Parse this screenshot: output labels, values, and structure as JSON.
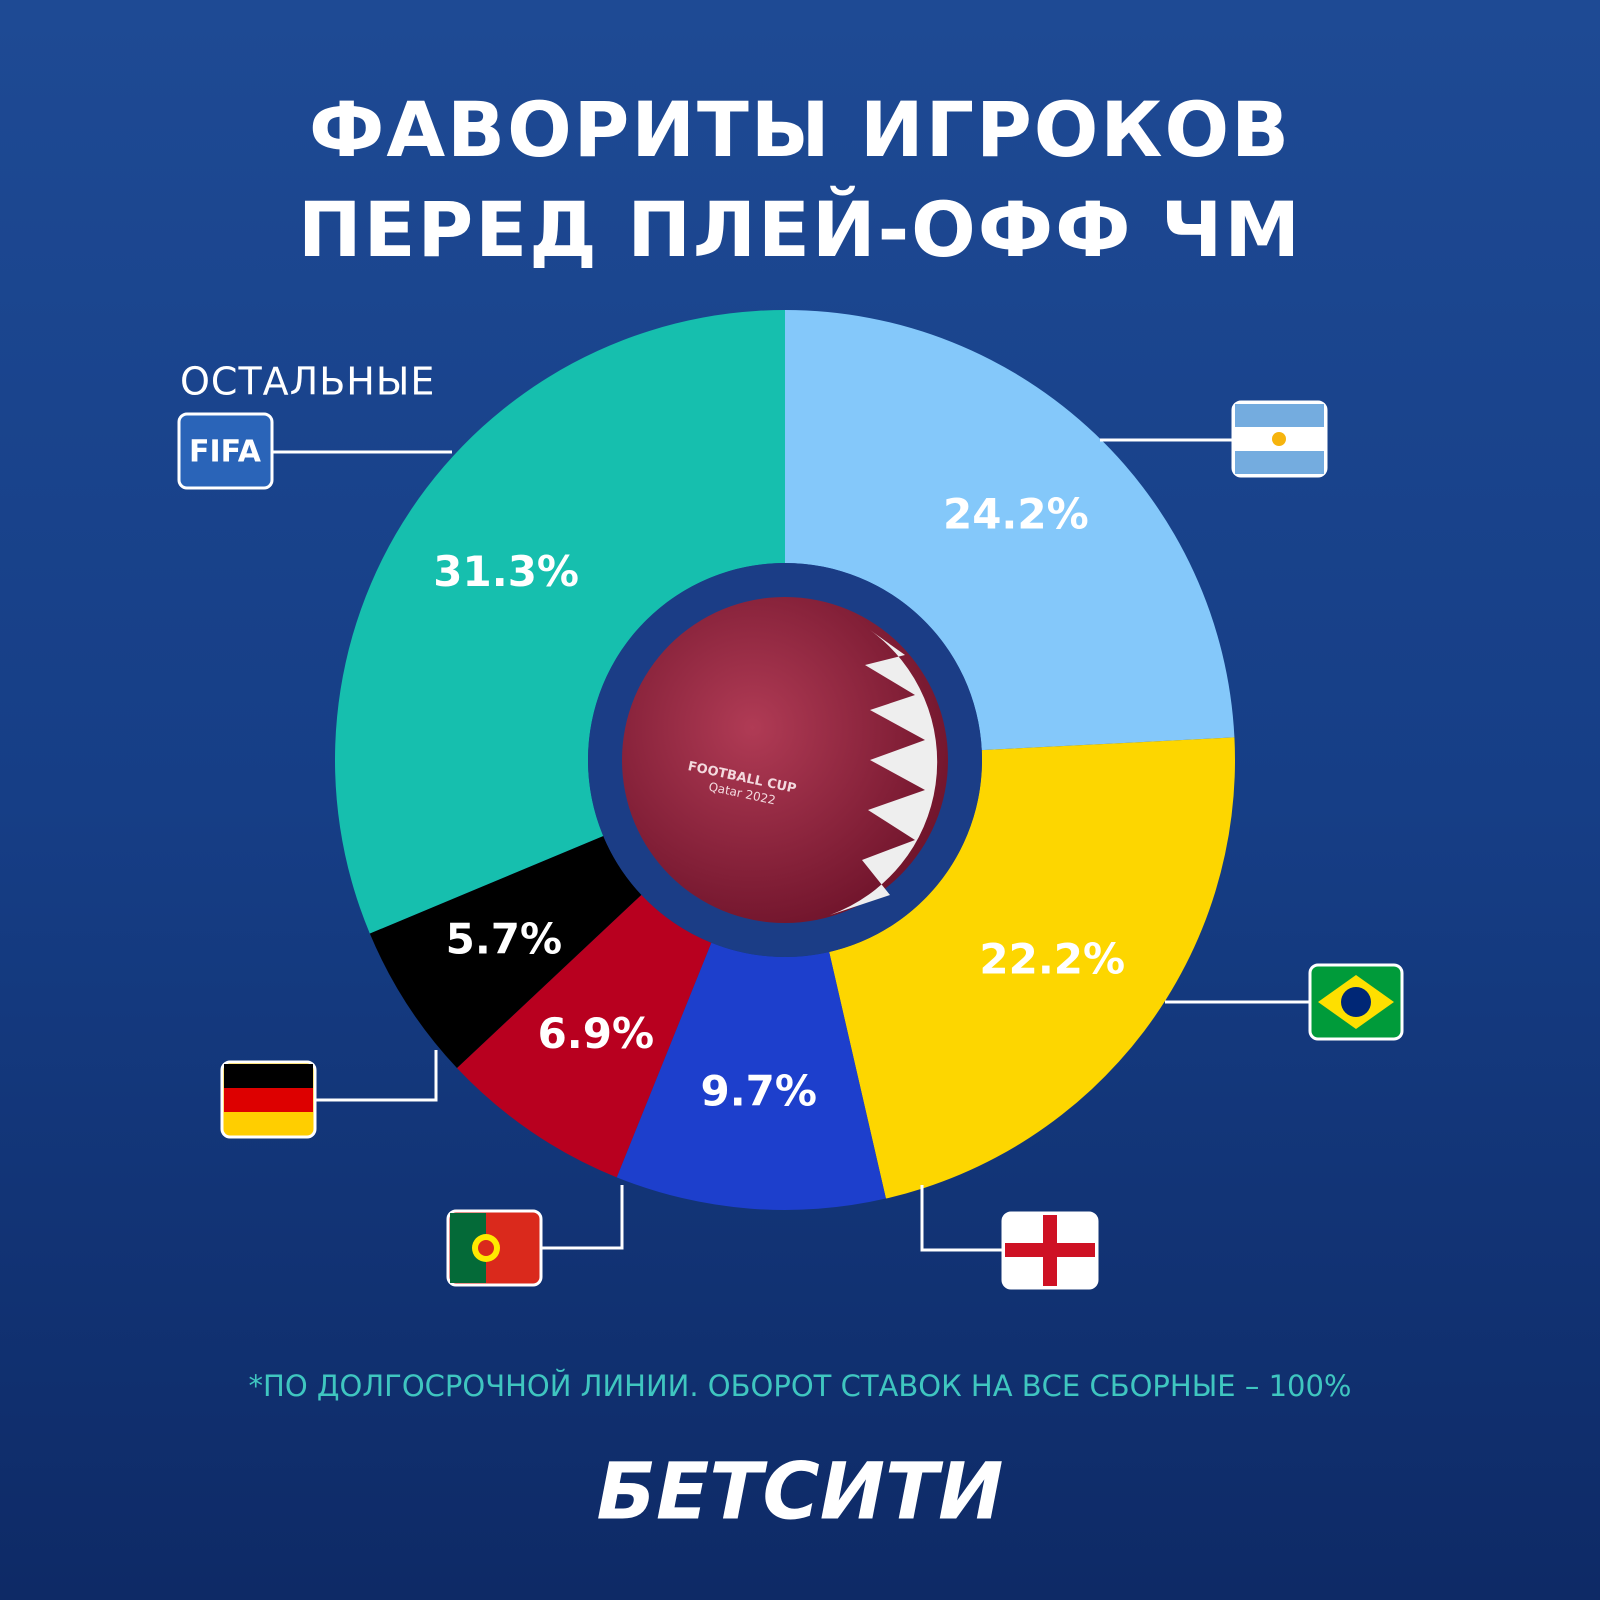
{
  "chart_data": {
    "type": "donut",
    "title": [
      "ФАВОРИТЫ ИГРОКОВ",
      "ПЕРЕД ПЛЕЙ-ОФФ ЧМ"
    ],
    "categories": [
      null,
      null,
      null,
      null,
      null,
      "ОСТАЛЬНЫЕ"
    ],
    "values": [
      24.2,
      22.2,
      9.7,
      6.9,
      5.7,
      31.3
    ],
    "value_labels": [
      "24.2%",
      "22.2%",
      "9.7%",
      "6.9%",
      "5.7%",
      "31.3%"
    ],
    "colors": [
      "#84c8fa",
      "#fdd600",
      "#1d3fcc",
      "#b8001f",
      "#000000",
      "#16bfae"
    ],
    "others_badge": "FIFA",
    "center_image_text": [
      "FOOTBALL CUP",
      "Qatar 2022"
    ],
    "footnote": "*ПО ДОЛГОСРОЧНОЙ ЛИНИИ. ОБОРОТ СТАВОК НА ВСЕ СБОРНЫЕ – 100%",
    "brand": "БЕТСИТИ"
  }
}
